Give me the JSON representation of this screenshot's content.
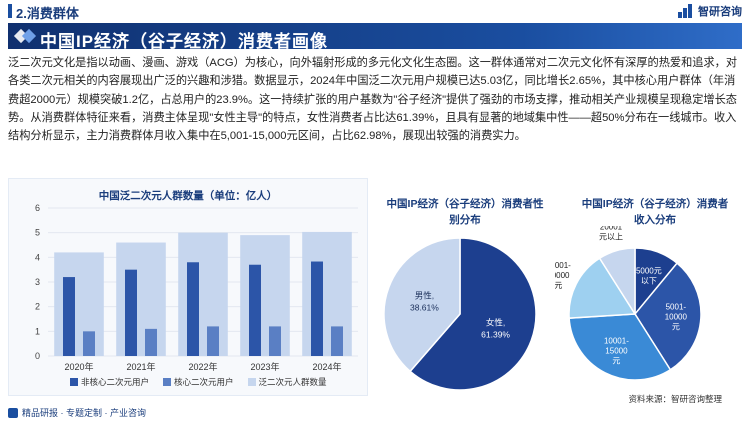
{
  "header": {
    "section_title": "2.消费群体",
    "logo_text": "智研咨询"
  },
  "banner": {
    "title": "中国IP经济（谷子经济）消费者画像"
  },
  "paragraph": "泛二次元文化是指以动画、漫画、游戏（ACG）为核心，向外辐射形成的多元化文化生态圈。这一群体通常对二次元文化怀有深厚的热爱和追求，对各类二次元相关的内容展现出广泛的兴趣和涉猎。数据显示，2024年中国泛二次元用户规模已达5.03亿，同比增长2.65%，其中核心用户群体（年消费超2000元）规模突破1.2亿，占总用户的23.9%。这一持续扩张的用户基数为\"谷子经济\"提供了强劲的市场支撑，推动相关产业规模呈现稳定增长态势。从消费群体特征来看，消费主体呈现\"女性主导\"的特点，女性消费者占比达61.39%，且具有显著的地域集中性——超50%分布在一线城市。收入结构分析显示，主力消费群体月收入集中在5,001-15,000元区间，占比62.98%，展现出较强的消费实力。",
  "footer": {
    "left_text": "精品研报 · 专题定制 · 产业咨询",
    "source": "资料来源：智研咨询整理"
  },
  "colors": {
    "primary": "#1a4ea0",
    "light_bar": "#c6d6ee",
    "dark_bar": "#2c55a8",
    "mid_bar": "#5a7fc4"
  },
  "chart_data": [
    {
      "type": "bar",
      "title": "中国泛二次元人群数量（单位：亿人）",
      "categories": [
        "2020年",
        "2021年",
        "2022年",
        "2023年",
        "2024年"
      ],
      "ylim": [
        0,
        6
      ],
      "yticks": [
        "0",
        "1",
        "2",
        "3",
        "4",
        "5",
        "6"
      ],
      "series": [
        {
          "name": "非核心二次元用户",
          "values": [
            3.2,
            3.5,
            3.8,
            3.7,
            3.83
          ]
        },
        {
          "name": "核心二次元用户",
          "values": [
            1.0,
            1.1,
            1.2,
            1.2,
            1.2
          ]
        },
        {
          "name": "泛二次元人群数量",
          "values": [
            4.2,
            4.6,
            5.0,
            4.9,
            5.03
          ]
        }
      ]
    },
    {
      "type": "pie",
      "title": "中国IP经济（谷子经济）消费者性别分布",
      "slices": [
        {
          "label": "女性",
          "value": 61.39,
          "display": "61.39%"
        },
        {
          "label": "男性",
          "value": 38.61,
          "display": "38.61%"
        }
      ]
    },
    {
      "type": "pie",
      "title": "中国IP经济（谷子经济）消费者收入分布",
      "slices": [
        {
          "label": "5000元以下",
          "value": 11
        },
        {
          "label": "5001-10000元",
          "value": 30
        },
        {
          "label": "10001-15000元",
          "value": 33
        },
        {
          "label": "15001-20000元",
          "value": 17
        },
        {
          "label": "20001元以上",
          "value": 9
        }
      ]
    }
  ]
}
